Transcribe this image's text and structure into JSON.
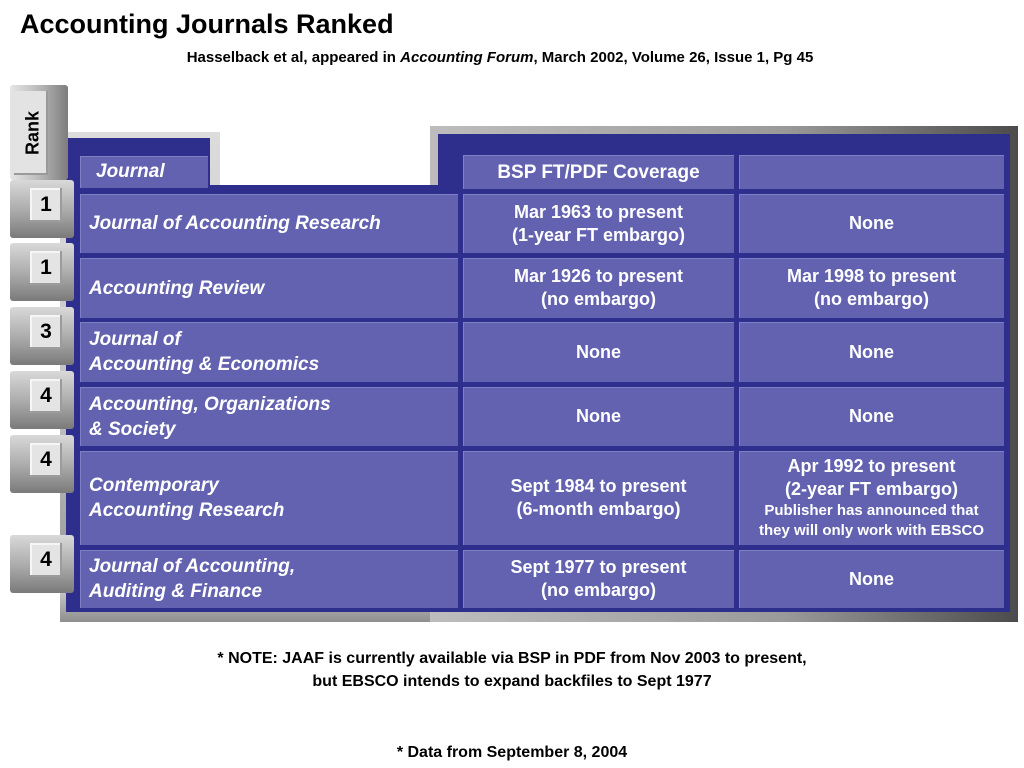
{
  "header": {
    "title": "Accounting Journals Ranked",
    "subtitle_prefix": "Hasselback et al, appeared in ",
    "subtitle_source": "Accounting Forum",
    "subtitle_suffix": ", March 2002, Volume 26, Issue 1, Pg 45"
  },
  "table": {
    "rank_header": "Rank",
    "columns": [
      "Journal",
      "BSP FT/PDF Coverage",
      ""
    ],
    "rows": [
      {
        "rank": "1",
        "journal": [
          "Journal of Accounting Research"
        ],
        "bsp": [
          "Mar 1963 to present",
          "(1-year FT embargo)"
        ],
        "other": [
          "None"
        ],
        "other_note": []
      },
      {
        "rank": "1",
        "journal": [
          "Accounting Review"
        ],
        "bsp": [
          "Mar 1926 to present",
          "(no embargo)"
        ],
        "other": [
          "Mar 1998 to present",
          "(no embargo)"
        ],
        "other_note": []
      },
      {
        "rank": "3",
        "journal": [
          "Journal of",
          "Accounting & Economics"
        ],
        "bsp": [
          "None"
        ],
        "other": [
          "None"
        ],
        "other_note": []
      },
      {
        "rank": "4",
        "journal": [
          "Accounting, Organizations",
          "& Society"
        ],
        "bsp": [
          "None"
        ],
        "other": [
          "None"
        ],
        "other_note": []
      },
      {
        "rank": "4",
        "journal": [
          "Contemporary",
          "Accounting Research"
        ],
        "bsp": [
          "Sept 1984 to present",
          "(6-month embargo)"
        ],
        "other": [
          "Apr 1992 to present",
          "(2-year FT embargo)"
        ],
        "other_note": [
          "Publisher has announced that",
          "they will only work with EBSCO"
        ]
      },
      {
        "rank": "4",
        "journal": [
          "Journal of Accounting,",
          "Auditing & Finance"
        ],
        "bsp": [
          "Sept 1977 to present",
          "(no embargo)"
        ],
        "other": [
          "None"
        ],
        "other_note": []
      }
    ]
  },
  "notes": {
    "note1_line1": "*  NOTE: JAAF is currently available via BSP in PDF from Nov 2003 to present,",
    "note1_line2": "but EBSCO intends to expand backfiles to Sept 1977",
    "note2": "*  Data from September 8, 2004"
  },
  "colors": {
    "cell": "#6262b0",
    "navy": "#2e2e8c",
    "frame": "#c3c3c3"
  }
}
